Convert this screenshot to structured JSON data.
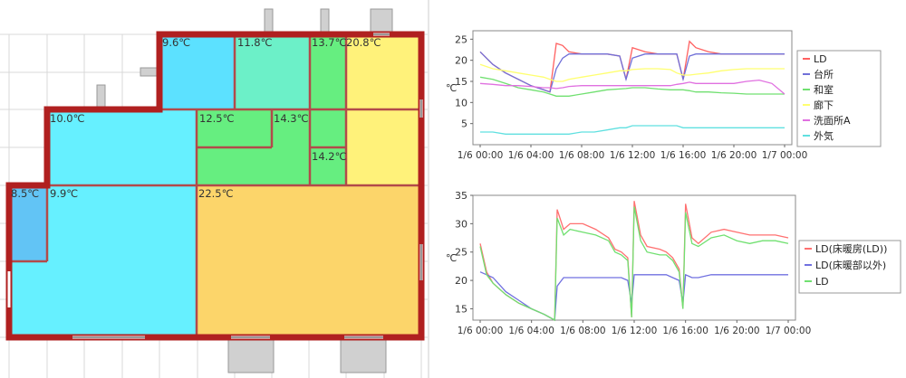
{
  "floorplan": {
    "rooms": [
      {
        "id": "room-a",
        "temp_label": "9.6℃",
        "color": "#5ce1ff"
      },
      {
        "id": "room-b",
        "temp_label": "11.8℃",
        "color": "#6cf0c8"
      },
      {
        "id": "room-c",
        "temp_label": "13.7℃",
        "color": "#66ee80"
      },
      {
        "id": "room-d",
        "temp_label": "20.8℃",
        "color": "#fff27a"
      },
      {
        "id": "room-e",
        "temp_label": "10.0℃",
        "color": "#66f0ff"
      },
      {
        "id": "room-f",
        "temp_label": "12.5℃",
        "color": "#66ee80"
      },
      {
        "id": "room-g",
        "temp_label": "14.3℃",
        "color": "#66ee80"
      },
      {
        "id": "room-h",
        "temp_label": "14.2℃",
        "color": "#66ee80"
      },
      {
        "id": "room-i",
        "temp_label": "8.5℃",
        "color": "#62c4f5"
      },
      {
        "id": "room-j",
        "temp_label": "9.9℃",
        "color": "#66f0ff"
      },
      {
        "id": "room-k",
        "temp_label": "22.5℃",
        "color": "#fcd56a"
      }
    ],
    "wall_color": "#b02020"
  },
  "chart_data": [
    {
      "type": "line",
      "xlabel": "",
      "ylabel": "℃",
      "ylim": [
        0,
        27
      ],
      "yticks": [
        5,
        10,
        15,
        20,
        25
      ],
      "x_ticks": [
        "1/6 00:00",
        "1/6 04:00",
        "1/6 08:00",
        "1/6 12:00",
        "1/6 16:00",
        "1/6 20:00",
        "1/7 00:00"
      ],
      "x_hours": [
        0,
        1,
        2,
        3,
        4,
        5,
        5.5,
        6,
        6.5,
        7,
        8,
        9,
        10,
        11,
        11.5,
        12,
        13,
        14,
        15,
        15.5,
        16,
        16.5,
        17,
        18,
        19,
        20,
        21,
        22,
        23,
        24
      ],
      "legend_position": "right",
      "series": [
        {
          "name": "LD",
          "color": "#ff6060",
          "values": [
            22,
            19,
            17,
            15.5,
            14,
            13,
            12.5,
            24,
            23.5,
            22,
            21.5,
            21.5,
            21.5,
            21,
            15.5,
            23,
            22,
            21.5,
            21.5,
            21.5,
            15.5,
            24.5,
            23,
            22,
            21.5,
            21.5,
            21.5,
            21.5,
            21.5,
            21.5
          ]
        },
        {
          "name": "台所",
          "color": "#7070d8",
          "values": [
            22,
            19,
            17,
            15.5,
            14,
            13,
            12.5,
            18,
            20.5,
            21.5,
            21.5,
            21.5,
            21.5,
            21,
            15.5,
            20.5,
            21.5,
            21.5,
            21.5,
            21.5,
            15.5,
            21,
            21.5,
            21.5,
            21.5,
            21.5,
            21.5,
            21.5,
            21.5,
            21.5
          ]
        },
        {
          "name": "和室",
          "color": "#70e070",
          "values": [
            16,
            15.5,
            14.5,
            13.5,
            13,
            12.5,
            12,
            11.5,
            11.5,
            11.5,
            12,
            12.5,
            13,
            13.2,
            13.3,
            13.5,
            13.5,
            13.2,
            13,
            13,
            13,
            12.8,
            12.5,
            12.5,
            12.3,
            12.2,
            12,
            12,
            12,
            12
          ]
        },
        {
          "name": "廊下",
          "color": "#ffff70",
          "values": [
            19,
            18,
            17.5,
            17,
            16.5,
            16,
            15.5,
            15,
            15,
            15.5,
            16,
            16.5,
            17,
            17.5,
            17.5,
            17.8,
            18,
            18,
            17.8,
            17,
            16.5,
            16.5,
            16.7,
            17,
            17.5,
            17.8,
            18,
            18,
            18,
            18
          ]
        },
        {
          "name": "洗面所A",
          "color": "#e070e0",
          "values": [
            14.5,
            14.3,
            14,
            14,
            13.8,
            13.5,
            13.5,
            13.3,
            13.5,
            13.8,
            14,
            14,
            14,
            14,
            14,
            14,
            14,
            14,
            14,
            14.3,
            14.5,
            14.8,
            14.5,
            14.5,
            14.5,
            14.5,
            15,
            15.3,
            14.5,
            12
          ]
        },
        {
          "name": "外気",
          "color": "#60e0e0",
          "values": [
            3,
            3,
            2.5,
            2.5,
            2.5,
            2.5,
            2.5,
            2.5,
            2.5,
            2.5,
            3,
            3,
            3.5,
            4,
            4,
            4.5,
            4.5,
            4.5,
            4.5,
            4.5,
            4,
            4,
            4,
            4,
            4,
            4,
            4,
            4,
            4,
            4
          ]
        }
      ]
    },
    {
      "type": "line",
      "xlabel": "",
      "ylabel": "℃",
      "ylim": [
        13,
        35
      ],
      "yticks": [
        15,
        20,
        25,
        30,
        35
      ],
      "x_ticks": [
        "1/6 00:00",
        "1/6 04:00",
        "1/6 08:00",
        "1/6 12:00",
        "1/6 16:00",
        "1/6 20:00",
        "1/7 00:00"
      ],
      "x_hours": [
        0,
        0.5,
        1,
        2,
        3,
        4,
        5,
        5.8,
        6,
        6.5,
        7,
        8,
        9,
        10,
        10.5,
        11,
        11.5,
        11.8,
        12,
        12.5,
        13,
        14,
        14.5,
        15,
        15.5,
        15.8,
        16,
        16.5,
        17,
        18,
        19,
        20,
        21,
        22,
        23,
        24
      ],
      "legend_position": "right",
      "series": [
        {
          "name": "LD(床暖房(LD))",
          "color": "#ff7070",
          "values": [
            26.5,
            21.5,
            19.5,
            17.5,
            16,
            15,
            14,
            13,
            32.5,
            29,
            30,
            30,
            29,
            27.5,
            25.5,
            25,
            24,
            13.5,
            34,
            28,
            26,
            25.5,
            25,
            24,
            22,
            15,
            33.5,
            27.5,
            26.5,
            28.5,
            29,
            28.5,
            28,
            28,
            28,
            27.5
          ]
        },
        {
          "name": "LD(床暖部以外)",
          "color": "#7070e0",
          "values": [
            21.5,
            21,
            20.5,
            18,
            16.5,
            15,
            14,
            13,
            19,
            20.5,
            20.5,
            20.5,
            20.5,
            20.5,
            20.5,
            20.5,
            20,
            16,
            21,
            21,
            21,
            21,
            21,
            20.5,
            20,
            16,
            21,
            20.5,
            20.5,
            21,
            21,
            21,
            21,
            21,
            21,
            21
          ]
        },
        {
          "name": "LD",
          "color": "#70e070",
          "values": [
            26,
            21,
            19.5,
            17.5,
            16,
            15,
            14,
            13,
            31,
            28,
            29,
            28.5,
            28,
            27,
            25,
            24.5,
            23.5,
            13.5,
            33,
            27,
            25,
            24.5,
            24.5,
            23.5,
            21.5,
            15,
            32,
            26.5,
            26,
            27.5,
            28,
            27,
            26.5,
            27,
            27,
            26.5
          ]
        }
      ]
    }
  ]
}
